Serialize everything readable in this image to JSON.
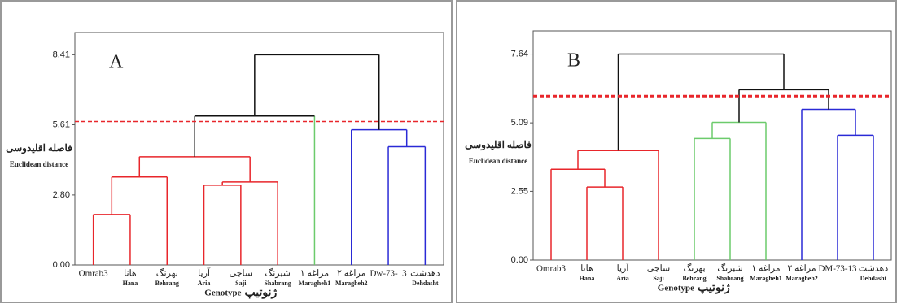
{
  "chart_data": [
    {
      "type": "dendrogram",
      "title": "A",
      "leaves": [
        {
          "label": "Omrab3"
        },
        {
          "label": "هانا",
          "sub": "Hana"
        },
        {
          "label": "بهرنگ",
          "sub": "Behrang"
        },
        {
          "label": "آریا",
          "sub": "Aria"
        },
        {
          "label": "ساجی",
          "sub": "Saji"
        },
        {
          "label": "شبرنگ",
          "sub": "Shabrang"
        },
        {
          "label": "مراغه ۱",
          "sub": "Maragheh1"
        },
        {
          "label": "مراغه ۲",
          "sub": "Maragheh2"
        },
        {
          "label": "Dw-73-13"
        },
        {
          "label": "دهدشت",
          "sub": "Dehdasht"
        }
      ],
      "merges": [
        {
          "a": 0,
          "b": 1,
          "height": 2.02,
          "color": "#e8262b"
        },
        {
          "a": 3,
          "b": 4,
          "height": 3.19,
          "color": "#e8262b"
        },
        {
          "a": 11,
          "b": 5,
          "height": 3.32,
          "color": "#e8262b"
        },
        {
          "a": 10,
          "b": 2,
          "height": 3.52,
          "color": "#e8262b"
        },
        {
          "a": 13,
          "b": 12,
          "height": 4.33,
          "color": "#e8262b"
        },
        {
          "a": 8,
          "b": 9,
          "height": 4.73,
          "color": "#2a2ad6"
        },
        {
          "a": 7,
          "b": 15,
          "height": 5.41,
          "color": "#2a2ad6"
        },
        {
          "a": 14,
          "b": 6,
          "height": 5.96,
          "color": "#111111"
        },
        {
          "a": 17,
          "b": 16,
          "height": 8.41,
          "color": "#111111"
        }
      ],
      "leaf_colors": [
        "#e8262b",
        "#e8262b",
        "#e8262b",
        "#e8262b",
        "#e8262b",
        "#e8262b",
        "#6ccb6c",
        "#2a2ad6",
        "#2a2ad6",
        "#2a2ad6"
      ],
      "cutoff": 5.74,
      "cutoff_color": "#e8262b",
      "ylim": [
        0,
        9.3
      ],
      "yticks": [
        {
          "value": 0,
          "label": "0.00"
        },
        {
          "value": 2.8,
          "label": "2.80"
        },
        5.61,
        8.41
      ],
      "y_label": "فاصله اقلیدوسی",
      "y_label_en": "Euclidean distance",
      "x_label": "Genotype",
      "x_label_fa": "ژنوتیپ"
    },
    {
      "type": "dendrogram",
      "title": "B",
      "leaves": [
        {
          "label": "Omrab3"
        },
        {
          "label": "هانا",
          "sub": "Hana"
        },
        {
          "label": "آریا",
          "sub": "Aria"
        },
        {
          "label": "ساجی",
          "sub": "Saji"
        },
        {
          "label": "بهرنگ",
          "sub": "Behrang"
        },
        {
          "label": "شبرنگ",
          "sub": "Shabrang"
        },
        {
          "label": "مراغه ۱",
          "sub": "Maragheh1"
        },
        {
          "label": "مراغه ۲",
          "sub": "Maragheh2"
        },
        {
          "label": "DM-73-13"
        },
        {
          "label": "دهدشت",
          "sub": "Dehdasht"
        }
      ],
      "merges": [
        {
          "a": 1,
          "b": 2,
          "height": 2.71,
          "color": "#e8262b"
        },
        {
          "a": 0,
          "b": 10,
          "height": 3.37,
          "color": "#e8262b"
        },
        {
          "a": 11,
          "b": 3,
          "height": 4.06,
          "color": "#e8262b"
        },
        {
          "a": 4,
          "b": 5,
          "height": 4.51,
          "color": "#6ccb6c"
        },
        {
          "a": 13,
          "b": 6,
          "height": 5.11,
          "color": "#6ccb6c"
        },
        {
          "a": 8,
          "b": 9,
          "height": 4.63,
          "color": "#2a2ad6"
        },
        {
          "a": 7,
          "b": 15,
          "height": 5.59,
          "color": "#2a2ad6"
        },
        {
          "a": 14,
          "b": 16,
          "height": 6.32,
          "color": "#111111"
        },
        {
          "a": 12,
          "b": 17,
          "height": 7.64,
          "color": "#111111"
        }
      ],
      "leaf_colors": [
        "#e8262b",
        "#e8262b",
        "#e8262b",
        "#e8262b",
        "#6ccb6c",
        "#6ccb6c",
        "#6ccb6c",
        "#2a2ad6",
        "#2a2ad6",
        "#2a2ad6"
      ],
      "cutoff": 6.08,
      "cutoff_color": "#e8262b",
      "ylim": [
        0,
        8.5
      ],
      "yticks": [
        {
          "value": 0,
          "label": "0.00"
        },
        2.55,
        5.09,
        7.64
      ],
      "y_label": "فاصله اقلیدوسی",
      "y_label_en": "Euclidean distance",
      "x_label": "Genotype",
      "x_label_fa": "ژنوتیپ"
    }
  ]
}
